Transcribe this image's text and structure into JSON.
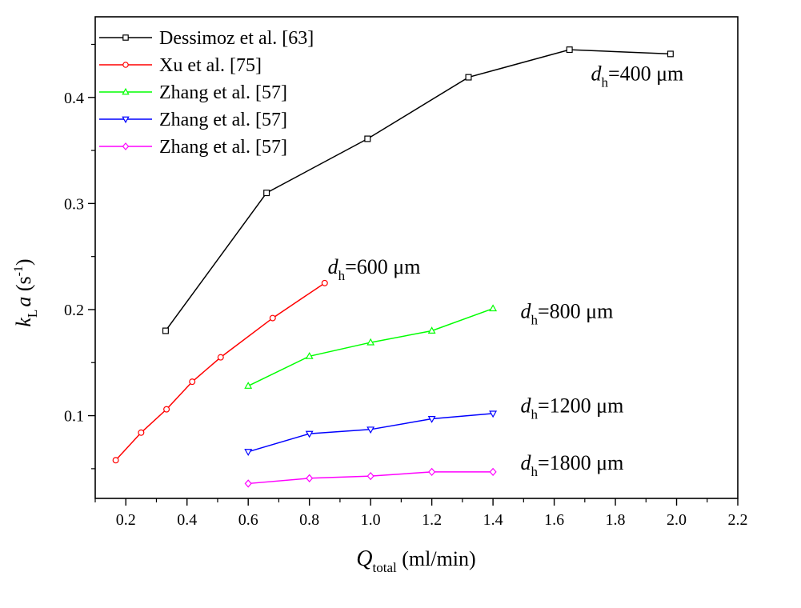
{
  "chart_data": {
    "type": "line",
    "title": "",
    "xlabel": {
      "main": "Q",
      "sub": "total",
      "unit": "(ml/min)"
    },
    "ylabel": {
      "main": "k",
      "sub": "L",
      "tail": "a",
      "unit": "(s",
      "sup": "-1",
      "close": ")"
    },
    "xlim": [
      0.1,
      2.2
    ],
    "ylim": [
      0.022,
      0.476
    ],
    "xticks": [
      0.2,
      0.4,
      0.6,
      0.8,
      1.0,
      1.2,
      1.4,
      1.6,
      1.8,
      2.0,
      2.2
    ],
    "xtick_labels": [
      "0.2",
      "0.4",
      "0.6",
      "0.8",
      "1.0",
      "1.2",
      "1.4",
      "1.6",
      "1.8",
      "2.0",
      "2.2"
    ],
    "yticks": [
      0.1,
      0.2,
      0.3,
      0.4
    ],
    "ytick_labels": [
      "0.1",
      "0.2",
      "0.3",
      "0.4"
    ],
    "grid": false,
    "legend_position": "top-left",
    "series": [
      {
        "name": "Dessimoz et al. [63]",
        "color": "#000000",
        "marker": "square",
        "x": [
          0.33,
          0.66,
          0.99,
          1.32,
          1.65,
          1.98
        ],
        "y": [
          0.18,
          0.31,
          0.361,
          0.419,
          0.445,
          0.441
        ]
      },
      {
        "name": "Xu et al. [75]",
        "color": "#ff0000",
        "marker": "circle",
        "x": [
          0.167,
          0.25,
          0.333,
          0.417,
          0.51,
          0.68,
          0.85
        ],
        "y": [
          0.058,
          0.084,
          0.106,
          0.132,
          0.155,
          0.192,
          0.225
        ]
      },
      {
        "name": "Zhang et al. [57]",
        "color": "#00ff00",
        "marker": "triangle-up",
        "x": [
          0.6,
          0.8,
          1.0,
          1.2,
          1.4
        ],
        "y": [
          0.128,
          0.156,
          0.169,
          0.18,
          0.201
        ]
      },
      {
        "name": "Zhang et al. [57]",
        "color": "#0000ff",
        "marker": "triangle-down",
        "x": [
          0.6,
          0.8,
          1.0,
          1.2,
          1.4
        ],
        "y": [
          0.066,
          0.083,
          0.087,
          0.097,
          0.102
        ]
      },
      {
        "name": "Zhang et al. [57]",
        "color": "#ff00ff",
        "marker": "diamond",
        "x": [
          0.6,
          0.8,
          1.0,
          1.2,
          1.4
        ],
        "y": [
          0.036,
          0.041,
          0.043,
          0.047,
          0.047
        ]
      }
    ],
    "annotations": [
      {
        "main": "d",
        "sub": "h",
        "rest": "=400 μm",
        "x": 1.72,
        "y": 0.416
      },
      {
        "main": "d",
        "sub": "h",
        "rest": "=600 μm",
        "x": 0.86,
        "y": 0.234
      },
      {
        "main": "d",
        "sub": "h",
        "rest": "=800 μm",
        "x": 1.49,
        "y": 0.192
      },
      {
        "main": "d",
        "sub": "h",
        "rest": "=1200 μm",
        "x": 1.49,
        "y": 0.103
      },
      {
        "main": "d",
        "sub": "h",
        "rest": "=1800 μm",
        "x": 1.49,
        "y": 0.049
      }
    ]
  }
}
